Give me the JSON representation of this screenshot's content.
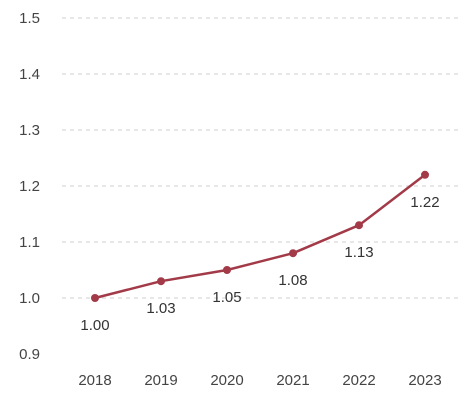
{
  "chart_data": {
    "type": "line",
    "title": "",
    "xlabel": "",
    "ylabel": "",
    "categories": [
      "2018",
      "2019",
      "2020",
      "2021",
      "2022",
      "2023"
    ],
    "series": [
      {
        "values": [
          1.0,
          1.03,
          1.05,
          1.08,
          1.13,
          1.22
        ]
      }
    ],
    "data_labels": [
      "1.00",
      "1.03",
      "1.05",
      "1.08",
      "1.13",
      "1.22"
    ],
    "yticks": [
      "0.9",
      "1.0",
      "1.1",
      "1.2",
      "1.3",
      "1.4",
      "1.5"
    ],
    "ylim": [
      0.9,
      1.5
    ],
    "grid": true,
    "line_color": "#a23a48"
  }
}
